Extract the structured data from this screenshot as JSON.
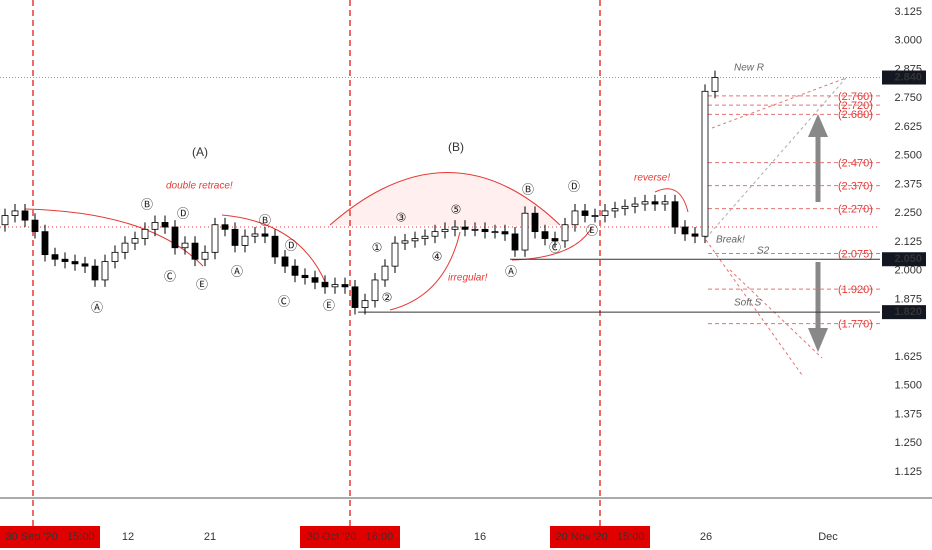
{
  "chart_data": {
    "type": "candlestick",
    "ylim": [
      1.012,
      3.177
    ],
    "yticks": [
      3.125,
      {
        "value": 3,
        "label": "3.000"
      },
      2.875,
      {
        "value": 2.75,
        "label": "2.750"
      },
      2.625,
      {
        "value": 2.5,
        "label": "2.500"
      },
      2.375,
      {
        "value": 2.25,
        "label": "2.250"
      },
      2.125,
      {
        "value": 2,
        "label": "2.000"
      },
      1.875,
      1.625,
      {
        "value": 1.5,
        "label": "1.500"
      },
      1.375,
      {
        "value": 1.25,
        "label": "1.250"
      },
      1.125
    ],
    "x_labels": [
      "30 Sep '20   15:00",
      "12",
      "21",
      "30 Oct '20   16:00",
      "16",
      "20 Nov '20   15:00",
      "26",
      "Dec"
    ],
    "highlighted_x_labels": [
      true,
      false,
      false,
      true,
      false,
      true,
      false,
      false
    ],
    "open": [
      2.2,
      2.24,
      2.26,
      2.22,
      2.17,
      2.07,
      2.05,
      2.04,
      2.03,
      2.02,
      1.96,
      2.04,
      2.08,
      2.12,
      2.14,
      2.18,
      2.21,
      2.19,
      2.1,
      2.12,
      2.05,
      2.08,
      2.2,
      2.18,
      2.11,
      2.15,
      2.16,
      2.15,
      2.06,
      2.02,
      1.98,
      1.97,
      1.95,
      1.93,
      1.94,
      1.93,
      1.84,
      1.87,
      1.96,
      2.02,
      2.12,
      2.13,
      2.14,
      2.15,
      2.17,
      2.18,
      2.19,
      2.18,
      2.18,
      2.17,
      2.17,
      2.16,
      2.09,
      2.25,
      2.17,
      2.14,
      2.13,
      2.2,
      2.26,
      2.24,
      2.24,
      2.26,
      2.27,
      2.28,
      2.29,
      2.3,
      2.29,
      2.3,
      2.19,
      2.16,
      2.15,
      2.78
    ],
    "high": [
      2.27,
      2.29,
      2.29,
      2.25,
      2.2,
      2.1,
      2.08,
      2.07,
      2.06,
      2.05,
      2.07,
      2.11,
      2.15,
      2.17,
      2.21,
      2.24,
      2.24,
      2.22,
      2.15,
      2.15,
      2.11,
      2.23,
      2.23,
      2.21,
      2.18,
      2.19,
      2.19,
      2.18,
      2.09,
      2.05,
      2.01,
      2.0,
      1.98,
      1.97,
      1.97,
      1.96,
      1.9,
      1.99,
      2.05,
      2.15,
      2.16,
      2.17,
      2.18,
      2.2,
      2.21,
      2.22,
      2.22,
      2.21,
      2.21,
      2.2,
      2.2,
      2.19,
      2.28,
      2.28,
      2.2,
      2.17,
      2.23,
      2.29,
      2.29,
      2.27,
      2.29,
      2.3,
      2.31,
      2.32,
      2.33,
      2.33,
      2.33,
      2.33,
      2.22,
      2.19,
      2.81,
      2.87
    ],
    "low": [
      2.17,
      2.21,
      2.19,
      2.14,
      2.04,
      2.02,
      2.01,
      2.0,
      1.99,
      1.93,
      1.93,
      2.01,
      2.05,
      2.09,
      2.11,
      2.15,
      2.16,
      2.07,
      2.07,
      2.02,
      2.02,
      2.05,
      2.15,
      2.08,
      2.08,
      2.12,
      2.12,
      2.03,
      1.99,
      1.95,
      1.94,
      1.92,
      1.9,
      1.9,
      1.9,
      1.81,
      1.81,
      1.84,
      1.93,
      1.99,
      2.09,
      2.1,
      2.11,
      2.12,
      2.14,
      2.15,
      2.15,
      2.15,
      2.14,
      2.14,
      2.13,
      2.06,
      2.06,
      2.14,
      2.11,
      2.1,
      2.1,
      2.17,
      2.21,
      2.21,
      2.21,
      2.23,
      2.24,
      2.25,
      2.26,
      2.26,
      2.26,
      2.16,
      2.13,
      2.12,
      2.12,
      2.75
    ],
    "close": [
      2.24,
      2.26,
      2.22,
      2.17,
      2.07,
      2.05,
      2.04,
      2.03,
      2.02,
      1.96,
      2.04,
      2.08,
      2.12,
      2.14,
      2.18,
      2.21,
      2.19,
      2.1,
      2.12,
      2.05,
      2.08,
      2.2,
      2.18,
      2.11,
      2.15,
      2.16,
      2.15,
      2.06,
      2.02,
      1.98,
      1.97,
      1.95,
      1.93,
      1.94,
      1.93,
      1.84,
      1.87,
      1.96,
      2.02,
      2.12,
      2.13,
      2.14,
      2.15,
      2.17,
      2.18,
      2.19,
      2.18,
      2.18,
      2.17,
      2.17,
      2.16,
      2.09,
      2.25,
      2.17,
      2.14,
      2.13,
      2.2,
      2.26,
      2.24,
      2.24,
      2.26,
      2.27,
      2.28,
      2.29,
      2.3,
      2.29,
      2.3,
      2.19,
      2.16,
      2.15,
      2.78,
      2.84
    ],
    "price_lines": [
      {
        "value": 2.84,
        "label": "2.840"
      },
      {
        "value": 2.05,
        "label": "2.050"
      },
      {
        "value": 1.82,
        "label": "1.820"
      }
    ],
    "levels": [
      {
        "value": 2.76,
        "label": "(2.760)"
      },
      {
        "value": 2.72,
        "label": "(2.720)"
      },
      {
        "value": 2.68,
        "label": "(2.680)"
      },
      {
        "value": 2.47,
        "label": "(2.470)"
      },
      {
        "value": 2.37,
        "label": "(2.370)"
      },
      {
        "value": 2.27,
        "label": "(2.270)"
      },
      {
        "value": 2.075,
        "label": "(2.075)"
      },
      {
        "value": 1.92,
        "label": "(1.920)"
      },
      {
        "value": 1.77,
        "label": "(1.770)"
      }
    ],
    "dotted_level": 2.19,
    "wave_labels": [
      "Ⓐ",
      "Ⓑ",
      "Ⓒ",
      "Ⓓ",
      "Ⓔ",
      "Ⓐ",
      "Ⓑ",
      "Ⓓ",
      "Ⓒ",
      "Ⓔ",
      "①",
      "②",
      "③",
      "④",
      "⑤",
      "Ⓐ",
      "Ⓑ",
      "Ⓒ",
      "Ⓓ",
      "Ⓔ"
    ],
    "annotations": {
      "a": "(A)",
      "b": "(B)",
      "double": "double retrace!",
      "irregular": "irregular!",
      "reverse": "reverse!",
      "new_r": "New R",
      "break": "Break!",
      "s2": "S2",
      "soft_s": "Soft S"
    }
  }
}
